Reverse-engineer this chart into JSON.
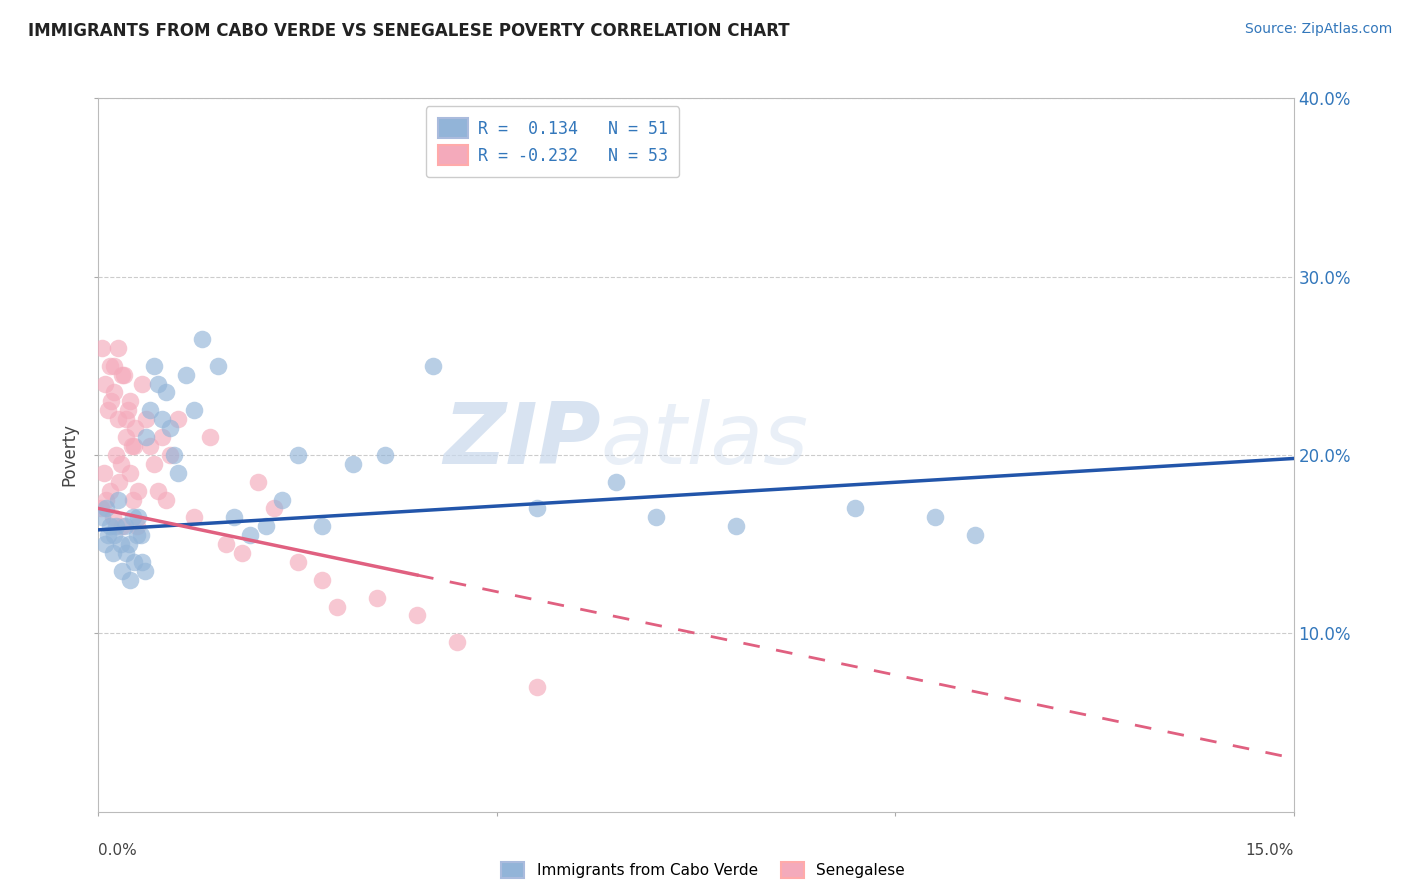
{
  "title": "IMMIGRANTS FROM CABO VERDE VS SENEGALESE POVERTY CORRELATION CHART",
  "source": "Source: ZipAtlas.com",
  "xlabel_blue": "Immigrants from Cabo Verde",
  "xlabel_pink": "Senegalese",
  "ylabel": "Poverty",
  "watermark": "ZIPatlas",
  "R_blue": 0.134,
  "N_blue": 51,
  "R_pink": -0.232,
  "N_pink": 53,
  "xlim": [
    0.0,
    15.0
  ],
  "ylim": [
    0.0,
    40.0
  ],
  "xticks": [
    0.0,
    5.0,
    10.0,
    15.0
  ],
  "yticks": [
    10.0,
    20.0,
    30.0,
    40.0
  ],
  "blue_color": "#92B4D8",
  "pink_color": "#F4AABB",
  "blue_line_color": "#2255AA",
  "pink_line_color": "#E06080",
  "grid_color": "#CCCCCC",
  "background_color": "#FFFFFF",
  "blue_scatter_x": [
    0.05,
    0.08,
    0.1,
    0.12,
    0.15,
    0.18,
    0.2,
    0.22,
    0.25,
    0.28,
    0.3,
    0.33,
    0.35,
    0.38,
    0.4,
    0.43,
    0.45,
    0.48,
    0.5,
    0.53,
    0.55,
    0.58,
    0.6,
    0.65,
    0.7,
    0.75,
    0.8,
    0.85,
    0.9,
    0.95,
    1.0,
    1.1,
    1.2,
    1.3,
    1.5,
    1.7,
    1.9,
    2.1,
    2.3,
    2.5,
    2.8,
    3.2,
    3.6,
    4.2,
    5.5,
    6.5,
    7.0,
    8.0,
    9.5,
    10.5,
    11.0
  ],
  "blue_scatter_y": [
    16.5,
    15.0,
    17.0,
    15.5,
    16.0,
    14.5,
    15.5,
    16.0,
    17.5,
    15.0,
    13.5,
    16.0,
    14.5,
    15.0,
    13.0,
    16.5,
    14.0,
    15.5,
    16.5,
    15.5,
    14.0,
    13.5,
    21.0,
    22.5,
    25.0,
    24.0,
    22.0,
    23.5,
    21.5,
    20.0,
    19.0,
    24.5,
    22.5,
    26.5,
    25.0,
    16.5,
    15.5,
    16.0,
    17.5,
    20.0,
    16.0,
    19.5,
    20.0,
    25.0,
    17.0,
    18.5,
    16.5,
    16.0,
    17.0,
    16.5,
    15.5
  ],
  "pink_scatter_x": [
    0.03,
    0.05,
    0.07,
    0.08,
    0.1,
    0.12,
    0.14,
    0.16,
    0.18,
    0.2,
    0.22,
    0.24,
    0.26,
    0.28,
    0.3,
    0.32,
    0.35,
    0.37,
    0.4,
    0.42,
    0.44,
    0.46,
    0.48,
    0.5,
    0.55,
    0.6,
    0.65,
    0.7,
    0.75,
    0.8,
    0.85,
    0.9,
    1.0,
    1.2,
    1.4,
    1.6,
    1.8,
    2.0,
    2.2,
    2.5,
    2.8,
    3.0,
    3.5,
    4.0,
    4.5,
    5.5,
    0.15,
    0.2,
    0.25,
    0.3,
    0.35,
    0.4,
    0.45
  ],
  "pink_scatter_y": [
    17.0,
    26.0,
    19.0,
    24.0,
    17.5,
    22.5,
    18.0,
    23.0,
    16.5,
    25.0,
    20.0,
    22.0,
    18.5,
    19.5,
    16.0,
    24.5,
    21.0,
    22.5,
    19.0,
    20.5,
    17.5,
    21.5,
    16.0,
    18.0,
    24.0,
    22.0,
    20.5,
    19.5,
    18.0,
    21.0,
    17.5,
    20.0,
    22.0,
    16.5,
    21.0,
    15.0,
    14.5,
    18.5,
    17.0,
    14.0,
    13.0,
    11.5,
    12.0,
    11.0,
    9.5,
    7.0,
    25.0,
    23.5,
    26.0,
    24.5,
    22.0,
    23.0,
    20.5
  ],
  "blue_trend_x0": 0.0,
  "blue_trend_y0": 15.8,
  "blue_trend_x1": 15.0,
  "blue_trend_y1": 19.8,
  "pink_trend_x0": 0.0,
  "pink_trend_y0": 17.0,
  "pink_trend_x1": 15.0,
  "pink_trend_y1": 3.0,
  "pink_solid_end": 4.0,
  "pink_dashed_start": 4.0
}
